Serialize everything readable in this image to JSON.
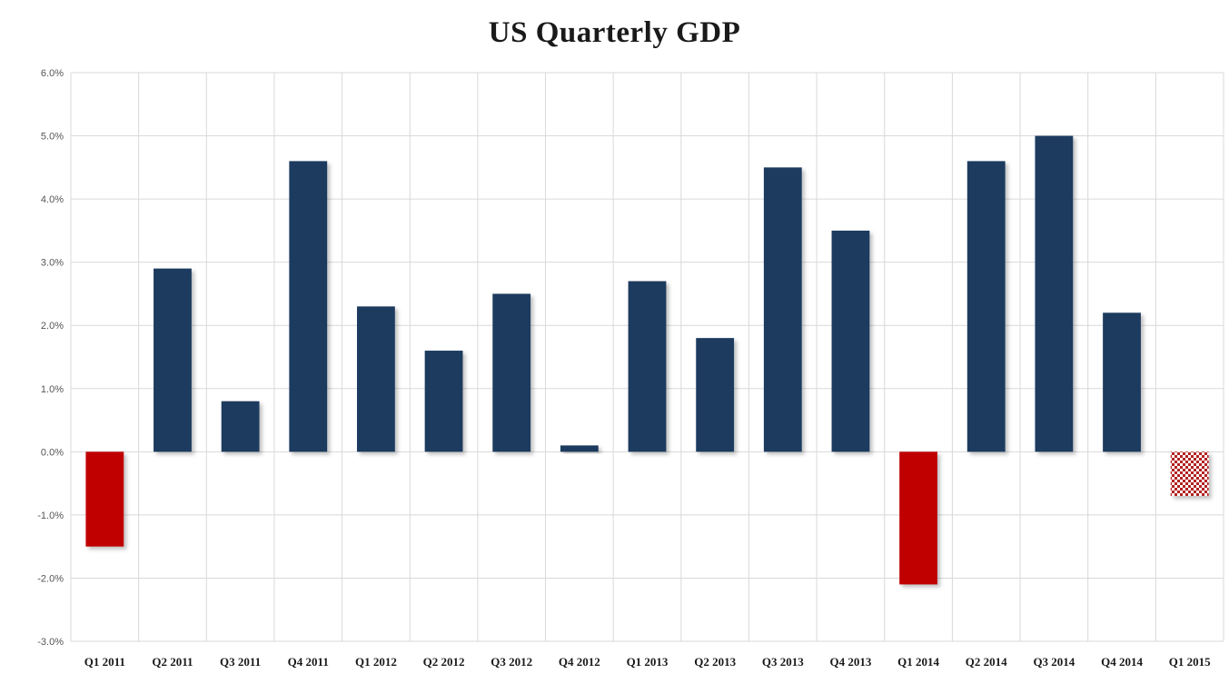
{
  "chart_data": {
    "type": "bar",
    "title": "US Quarterly GDP",
    "xlabel": "",
    "ylabel": "",
    "ylim": [
      -3.0,
      6.0
    ],
    "yticks": [
      "6.0%",
      "5.0%",
      "4.0%",
      "3.0%",
      "2.0%",
      "1.0%",
      "0.0%",
      "-1.0%",
      "-2.0%",
      "-3.0%"
    ],
    "grid": true,
    "categories": [
      "Q1 2011",
      "Q2 2011",
      "Q3 2011",
      "Q4 2011",
      "Q1 2012",
      "Q2 2012",
      "Q3 2012",
      "Q4 2012",
      "Q1 2013",
      "Q2 2013",
      "Q3 2013",
      "Q4 2013",
      "Q1 2014",
      "Q2 2014",
      "Q3 2014",
      "Q4 2014",
      "Q1 2015"
    ],
    "values": [
      -1.5,
      2.9,
      0.8,
      4.6,
      2.3,
      1.6,
      2.5,
      0.1,
      2.7,
      1.8,
      4.5,
      3.5,
      -2.1,
      4.6,
      5.0,
      2.2,
      -0.7
    ],
    "colors": {
      "positive": "#1f3a5f",
      "negative": "#c00000",
      "estimate_pattern": "#b22222"
    },
    "estimate_categories": [
      "Q1 2015"
    ]
  }
}
